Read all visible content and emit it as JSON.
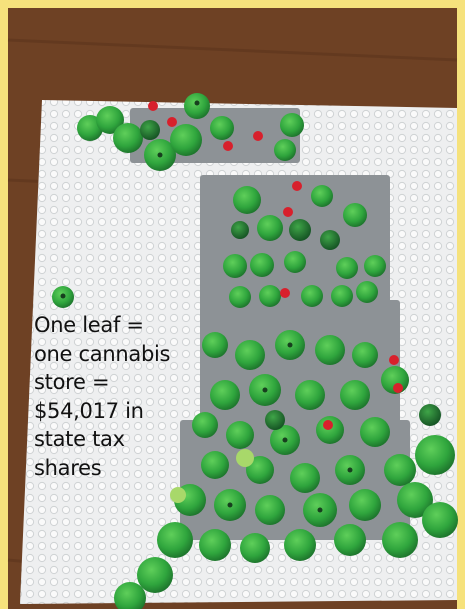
{
  "caption": {
    "lines": [
      "One leaf =",
      "one cannabis",
      "store =",
      "$54,017 in",
      "state tax",
      "shares"
    ]
  }
}
